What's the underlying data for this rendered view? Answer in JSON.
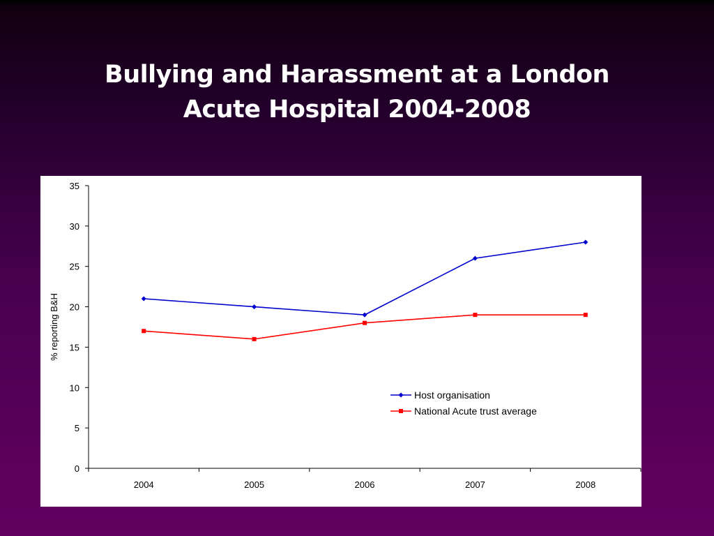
{
  "slide": {
    "title_line1": "Bullying and Harassment at a London",
    "title_line2": "Acute Hospital 2004-2008"
  },
  "chart_data": {
    "type": "line",
    "categories": [
      "2004",
      "2005",
      "2006",
      "2007",
      "2008"
    ],
    "series": [
      {
        "name": "Host organisation",
        "values": [
          21,
          20,
          19,
          26,
          28
        ],
        "color": "#0000cc",
        "marker": "diamond"
      },
      {
        "name": "National Acute trust average",
        "values": [
          17,
          16,
          18,
          19,
          19
        ],
        "color": "#ff0000",
        "marker": "square"
      }
    ],
    "ylabel": "% reporting B&H",
    "ylim": [
      0,
      35
    ],
    "yticks": [
      "0",
      "5",
      "10",
      "15",
      "20",
      "25",
      "30",
      "35"
    ],
    "grid": false,
    "legend_position": "lower-right"
  },
  "colors": {
    "background_top": "#000000",
    "background_bottom": "#63005f",
    "title": "#ffffff",
    "panel": "#ffffff"
  }
}
